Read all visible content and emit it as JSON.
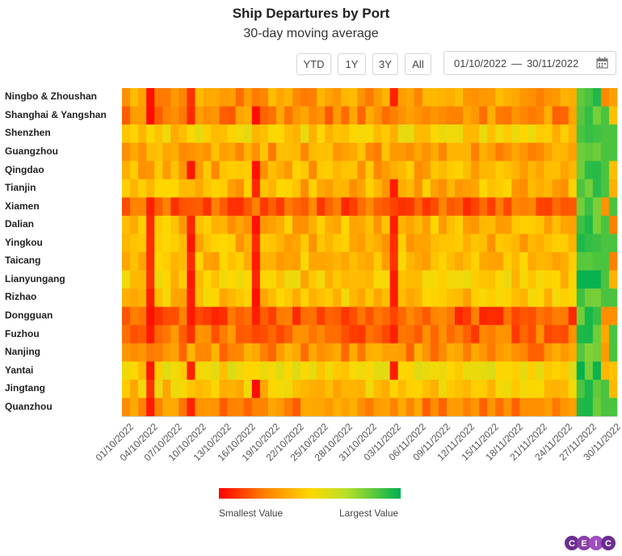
{
  "title": "Ship Departures by Port",
  "subtitle": "30-day moving average",
  "range_buttons": [
    "YTD",
    "1Y",
    "3Y",
    "All"
  ],
  "date_range": {
    "start": "01/10/2022",
    "separator": "—",
    "end": "30/11/2022"
  },
  "legend": {
    "min_label": "Smallest Value",
    "max_label": "Largest Value"
  },
  "logo_text": "CEIC",
  "chart_data": {
    "type": "heatmap",
    "title": "Ship Departures by Port",
    "subtitle": "30-day moving average",
    "rows": [
      "Ningbo & Zhoushan",
      "Shanghai & Yangshan",
      "Shenzhen",
      "Guangzhou",
      "Qingdao",
      "Tianjin",
      "Xiamen",
      "Dalian",
      "Yingkou",
      "Taicang",
      "Lianyungang",
      "Rizhao",
      "Dongguan",
      "Fuzhou",
      "Nanjing",
      "Yantai",
      "Jingtang",
      "Quanzhou"
    ],
    "columns": [
      "01/10/2022",
      "02/10/2022",
      "03/10/2022",
      "04/10/2022",
      "05/10/2022",
      "06/10/2022",
      "07/10/2022",
      "08/10/2022",
      "09/10/2022",
      "10/10/2022",
      "11/10/2022",
      "12/10/2022",
      "13/10/2022",
      "14/10/2022",
      "15/10/2022",
      "16/10/2022",
      "17/10/2022",
      "18/10/2022",
      "19/10/2022",
      "20/10/2022",
      "21/10/2022",
      "22/10/2022",
      "23/10/2022",
      "24/10/2022",
      "25/10/2022",
      "26/10/2022",
      "27/10/2022",
      "28/10/2022",
      "29/10/2022",
      "30/10/2022",
      "31/10/2022",
      "01/11/2022",
      "02/11/2022",
      "03/11/2022",
      "04/11/2022",
      "05/11/2022",
      "06/11/2022",
      "07/11/2022",
      "08/11/2022",
      "09/11/2022",
      "10/11/2022",
      "11/11/2022",
      "12/11/2022",
      "13/11/2022",
      "14/11/2022",
      "15/11/2022",
      "16/11/2022",
      "17/11/2022",
      "18/11/2022",
      "19/11/2022",
      "20/11/2022",
      "21/11/2022",
      "22/11/2022",
      "23/11/2022",
      "24/11/2022",
      "25/11/2022",
      "26/11/2022",
      "27/11/2022",
      "28/11/2022",
      "29/11/2022",
      "30/11/2022"
    ],
    "x_tick_labels": [
      "01/10/2022",
      "04/10/2022",
      "07/10/2022",
      "10/10/2022",
      "13/10/2022",
      "16/10/2022",
      "19/10/2022",
      "22/10/2022",
      "25/10/2022",
      "28/10/2022",
      "31/10/2022",
      "03/11/2022",
      "06/11/2022",
      "09/11/2022",
      "12/11/2022",
      "15/11/2022",
      "18/11/2022",
      "21/11/2022",
      "24/11/2022",
      "27/11/2022",
      "30/11/2022"
    ],
    "color_scale": [
      "#ff0000",
      "#ff7f00",
      "#ffd700",
      "#b8e02a",
      "#00b050"
    ],
    "value_range": [
      0,
      1
    ],
    "row_base_levels": [
      0.32,
      0.28,
      0.48,
      0.34,
      0.38,
      0.4,
      0.18,
      0.4,
      0.4,
      0.42,
      0.46,
      0.44,
      0.18,
      0.22,
      0.3,
      0.52,
      0.46,
      0.28
    ],
    "low_columns": [
      3,
      8,
      16,
      33
    ],
    "high_columns_start": 56
  }
}
